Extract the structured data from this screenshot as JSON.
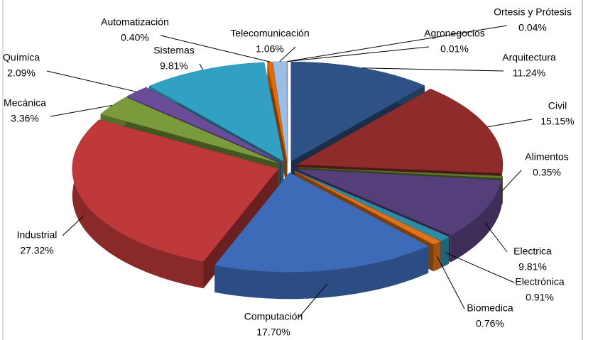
{
  "chart_data": {
    "type": "pie",
    "categories": [
      "Arquitectura",
      "Civil",
      "Alimentos",
      "Electrica",
      "Electrónica",
      "Biomedica",
      "Computación",
      "Industrial",
      "Mecánica",
      "Química",
      "Sistemas",
      "Automatización",
      "Telecomunicación",
      "Ortesis y Prótesis",
      "Agronegocios"
    ],
    "values": [
      11.24,
      15.15,
      0.35,
      9.81,
      0.91,
      0.76,
      17.7,
      27.32,
      3.36,
      2.09,
      9.81,
      0.4,
      1.06,
      0.04,
      0.01
    ],
    "value_labels": [
      "11.24%",
      "15.15%",
      "0.35%",
      "9.81%",
      "0.91%",
      "0.76%",
      "17.70%",
      "27.32%",
      "3.36%",
      "2.09%",
      "9.81%",
      "0.40%",
      "1.06%",
      "0.04%",
      "0.01%"
    ],
    "colors": [
      "#2f5286",
      "#8e2b2b",
      "#5f7a2e",
      "#553f7a",
      "#2f8aa3",
      "#e0701a",
      "#3d6bb8",
      "#c0393a",
      "#7a9a3c",
      "#6a4c98",
      "#32a0c2",
      "#e36c0a",
      "#9bbde6",
      "#a6a6a6",
      "#4f81bd"
    ]
  }
}
